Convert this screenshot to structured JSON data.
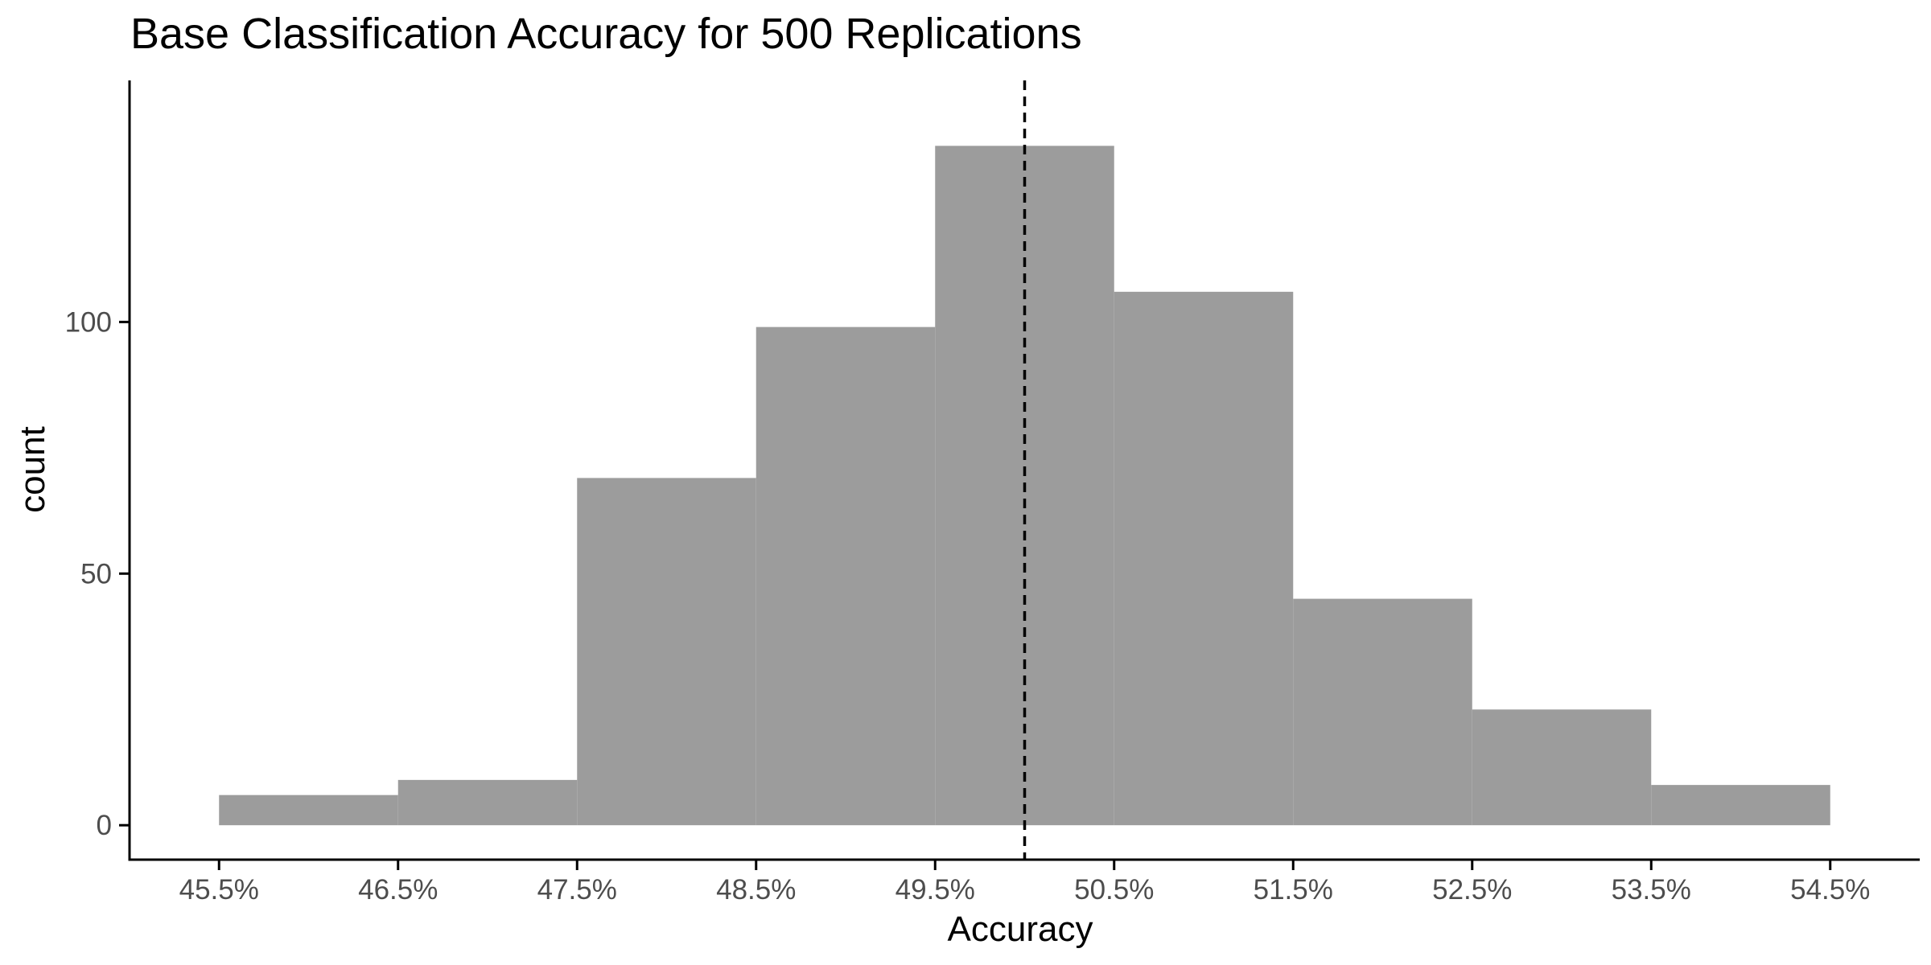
{
  "chart_data": {
    "type": "bar",
    "title": "Base Classification Accuracy for 500 Replications",
    "xlabel": "Accuracy",
    "ylabel": "count",
    "x_ticks": [
      "45.5%",
      "46.5%",
      "47.5%",
      "48.5%",
      "49.5%",
      "50.5%",
      "51.5%",
      "52.5%",
      "53.5%",
      "54.5%"
    ],
    "y_ticks": [
      "0",
      "50",
      "100"
    ],
    "bins": [
      {
        "x_start": 45.5,
        "x_end": 46.5,
        "count": 6
      },
      {
        "x_start": 46.5,
        "x_end": 47.5,
        "count": 9
      },
      {
        "x_start": 47.5,
        "x_end": 48.5,
        "count": 69
      },
      {
        "x_start": 48.5,
        "x_end": 49.5,
        "count": 99
      },
      {
        "x_start": 49.5,
        "x_end": 50.5,
        "count": 135
      },
      {
        "x_start": 50.5,
        "x_end": 51.5,
        "count": 106
      },
      {
        "x_start": 51.5,
        "x_end": 52.5,
        "count": 45
      },
      {
        "x_start": 52.5,
        "x_end": 53.5,
        "count": 23
      },
      {
        "x_start": 53.5,
        "x_end": 54.5,
        "count": 8
      }
    ],
    "reference_line": {
      "x": 50.0,
      "style": "dashed"
    },
    "xlim": [
      45.0,
      55.0
    ],
    "ylim": [
      -7,
      148
    ],
    "grid": false,
    "bar_color": "#9c9c9c",
    "axis_color": "#000000",
    "reference_line_color": "#000000"
  }
}
